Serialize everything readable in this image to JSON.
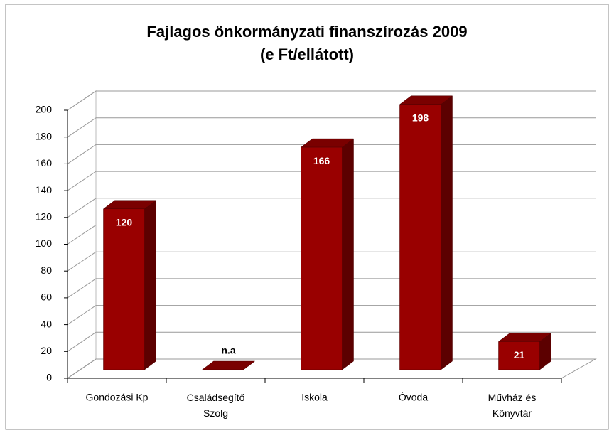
{
  "chart_data": {
    "type": "bar3d",
    "title": "Fajlagos önkormányzati finanszírozás 2009",
    "subtitle": "(e Ft/ellátott)",
    "categories": [
      "Gondozási Kp",
      "Családsegítő Szolg",
      "Iskola",
      "Óvoda",
      "Művház és Könyvtár"
    ],
    "values": [
      120,
      null,
      166,
      198,
      21
    ],
    "value_labels": [
      "120",
      "n.a",
      "166",
      "198",
      "21"
    ],
    "color": "#990000",
    "ylim": [
      0,
      200
    ],
    "yticks": [
      0,
      20,
      40,
      60,
      80,
      100,
      120,
      140,
      160,
      180,
      200
    ],
    "grid": true
  }
}
